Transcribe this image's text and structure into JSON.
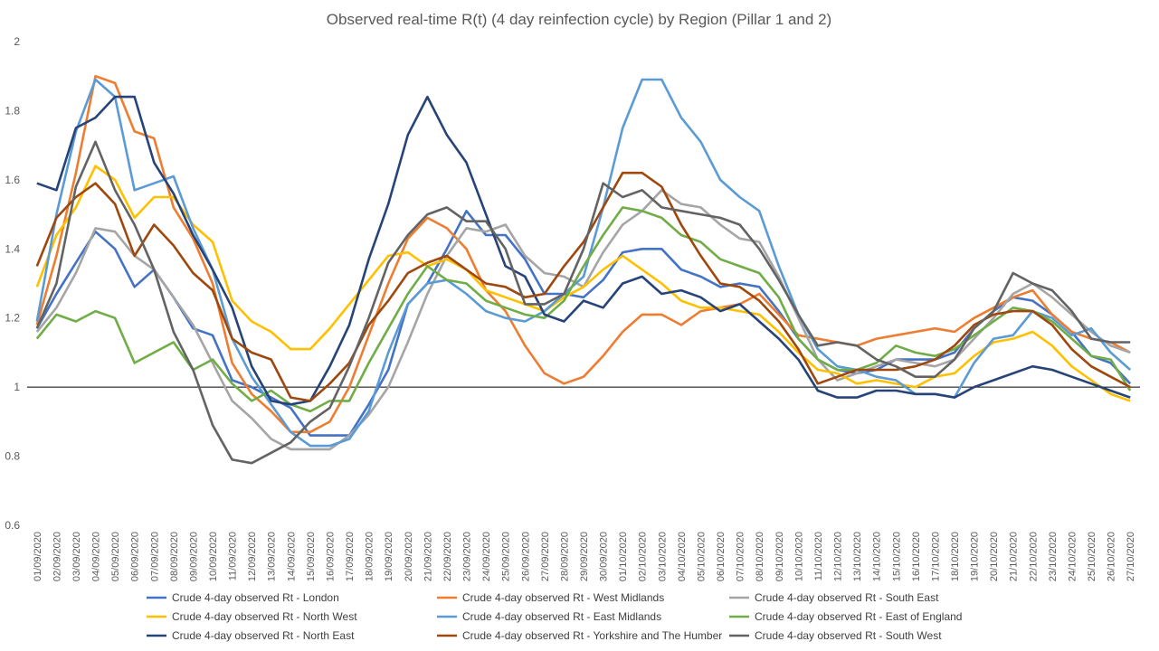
{
  "chart_data": {
    "type": "line",
    "title": "Observed real-time R(t) (4 day reinfection cycle) by Region (Pillar 1 and 2)",
    "categories": [
      "01/09/2020",
      "02/09/2020",
      "03/09/2020",
      "04/09/2020",
      "05/09/2020",
      "06/09/2020",
      "07/09/2020",
      "08/09/2020",
      "09/09/2020",
      "10/09/2020",
      "11/09/2020",
      "12/09/2020",
      "13/09/2020",
      "14/09/2020",
      "15/09/2020",
      "16/09/2020",
      "17/09/2020",
      "18/09/2020",
      "19/09/2020",
      "20/09/2020",
      "21/09/2020",
      "22/09/2020",
      "23/09/2020",
      "24/09/2020",
      "25/09/2020",
      "26/09/2020",
      "27/09/2020",
      "28/09/2020",
      "29/09/2020",
      "30/09/2020",
      "01/10/2020",
      "02/10/2020",
      "03/10/2020",
      "04/10/2020",
      "05/10/2020",
      "06/10/2020",
      "07/10/2020",
      "08/10/2020",
      "09/10/2020",
      "10/10/2020",
      "11/10/2020",
      "12/10/2020",
      "13/10/2020",
      "14/10/2020",
      "15/10/2020",
      "16/10/2020",
      "17/10/2020",
      "18/10/2020",
      "19/10/2020",
      "20/10/2020",
      "21/10/2020",
      "22/10/2020",
      "23/10/2020",
      "24/10/2020",
      "25/10/2020",
      "26/10/2020",
      "27/10/2020"
    ],
    "series": [
      {
        "name": "Crude 4-day observed Rt - London",
        "color": "#4472c4",
        "values": [
          1.17,
          1.27,
          1.36,
          1.45,
          1.4,
          1.29,
          1.34,
          1.26,
          1.17,
          1.15,
          1.02,
          1.0,
          0.97,
          0.94,
          0.86,
          0.86,
          0.86,
          0.95,
          1.05,
          1.24,
          1.3,
          1.4,
          1.51,
          1.44,
          1.44,
          1.37,
          1.27,
          1.27,
          1.26,
          1.31,
          1.39,
          1.4,
          1.4,
          1.34,
          1.32,
          1.29,
          1.3,
          1.29,
          1.22,
          1.14,
          1.08,
          1.05,
          1.04,
          1.05,
          1.08,
          1.08,
          1.08,
          1.1,
          1.17,
          1.22,
          1.26,
          1.25,
          1.21,
          1.16,
          1.09,
          1.07,
          1.01
        ]
      },
      {
        "name": "Crude 4-day observed Rt - West Midlands",
        "color": "#ed7d31",
        "values": [
          1.18,
          1.38,
          1.62,
          1.9,
          1.88,
          1.74,
          1.72,
          1.52,
          1.43,
          1.3,
          1.07,
          0.98,
          0.93,
          0.87,
          0.87,
          0.9,
          1.0,
          1.15,
          1.3,
          1.43,
          1.49,
          1.46,
          1.4,
          1.28,
          1.22,
          1.12,
          1.04,
          1.01,
          1.03,
          1.09,
          1.16,
          1.21,
          1.21,
          1.18,
          1.22,
          1.23,
          1.24,
          1.27,
          1.21,
          1.15,
          1.14,
          1.13,
          1.12,
          1.14,
          1.15,
          1.16,
          1.17,
          1.16,
          1.2,
          1.23,
          1.26,
          1.28,
          1.21,
          1.16,
          1.14,
          1.13,
          1.1
        ]
      },
      {
        "name": "Crude 4-day observed Rt - South East",
        "color": "#a5a5a5",
        "values": [
          1.16,
          1.23,
          1.33,
          1.46,
          1.45,
          1.38,
          1.34,
          1.26,
          1.18,
          1.07,
          0.96,
          0.91,
          0.85,
          0.82,
          0.82,
          0.82,
          0.86,
          0.92,
          1.0,
          1.13,
          1.27,
          1.38,
          1.46,
          1.45,
          1.47,
          1.38,
          1.33,
          1.32,
          1.29,
          1.39,
          1.47,
          1.51,
          1.57,
          1.53,
          1.52,
          1.47,
          1.43,
          1.42,
          1.32,
          1.2,
          1.08,
          1.02,
          1.04,
          1.06,
          1.08,
          1.07,
          1.06,
          1.08,
          1.14,
          1.2,
          1.27,
          1.3,
          1.26,
          1.21,
          1.16,
          1.12,
          1.1
        ]
      },
      {
        "name": "Crude 4-day observed Rt - North West",
        "color": "#ffc000",
        "values": [
          1.29,
          1.44,
          1.52,
          1.64,
          1.6,
          1.49,
          1.55,
          1.55,
          1.47,
          1.42,
          1.25,
          1.19,
          1.16,
          1.11,
          1.11,
          1.17,
          1.24,
          1.31,
          1.38,
          1.39,
          1.35,
          1.37,
          1.34,
          1.28,
          1.26,
          1.24,
          1.22,
          1.26,
          1.29,
          1.34,
          1.38,
          1.34,
          1.3,
          1.25,
          1.23,
          1.23,
          1.22,
          1.21,
          1.16,
          1.1,
          1.05,
          1.04,
          1.01,
          1.02,
          1.01,
          1.0,
          1.03,
          1.04,
          1.09,
          1.13,
          1.14,
          1.16,
          1.12,
          1.06,
          1.02,
          0.98,
          0.96
        ]
      },
      {
        "name": "Crude 4-day observed Rt - East Midlands",
        "color": "#5b9bd5",
        "values": [
          1.19,
          1.5,
          1.74,
          1.89,
          1.84,
          1.57,
          1.59,
          1.61,
          1.46,
          1.34,
          1.14,
          1.03,
          0.95,
          0.87,
          0.83,
          0.83,
          0.85,
          0.93,
          1.1,
          1.24,
          1.3,
          1.31,
          1.27,
          1.22,
          1.2,
          1.19,
          1.22,
          1.27,
          1.32,
          1.52,
          1.75,
          1.89,
          1.89,
          1.78,
          1.71,
          1.6,
          1.55,
          1.51,
          1.35,
          1.21,
          1.11,
          1.06,
          1.05,
          1.03,
          1.02,
          0.98,
          0.98,
          0.97,
          1.07,
          1.14,
          1.15,
          1.22,
          1.2,
          1.15,
          1.17,
          1.1,
          1.05
        ]
      },
      {
        "name": "Crude 4-day observed Rt - East of England",
        "color": "#70ad47",
        "values": [
          1.14,
          1.21,
          1.19,
          1.22,
          1.2,
          1.07,
          1.1,
          1.13,
          1.05,
          1.08,
          1.01,
          0.96,
          0.99,
          0.95,
          0.93,
          0.96,
          0.96,
          1.07,
          1.17,
          1.27,
          1.35,
          1.31,
          1.3,
          1.25,
          1.23,
          1.21,
          1.2,
          1.25,
          1.35,
          1.44,
          1.52,
          1.51,
          1.49,
          1.44,
          1.42,
          1.37,
          1.35,
          1.33,
          1.26,
          1.14,
          1.08,
          1.05,
          1.05,
          1.07,
          1.12,
          1.1,
          1.09,
          1.11,
          1.15,
          1.19,
          1.23,
          1.22,
          1.19,
          1.14,
          1.09,
          1.08,
          0.99
        ]
      },
      {
        "name": "Crude 4-day observed Rt - North East",
        "color": "#264478",
        "values": [
          1.59,
          1.57,
          1.75,
          1.78,
          1.84,
          1.84,
          1.65,
          1.56,
          1.44,
          1.34,
          1.23,
          1.06,
          0.96,
          0.95,
          0.96,
          1.06,
          1.18,
          1.37,
          1.53,
          1.73,
          1.84,
          1.73,
          1.65,
          1.5,
          1.35,
          1.32,
          1.21,
          1.19,
          1.25,
          1.23,
          1.3,
          1.32,
          1.27,
          1.28,
          1.26,
          1.22,
          1.24,
          1.19,
          1.14,
          1.08,
          0.99,
          0.97,
          0.97,
          0.99,
          0.99,
          0.98,
          0.98,
          0.97,
          1.0,
          1.02,
          1.04,
          1.06,
          1.05,
          1.03,
          1.01,
          0.99,
          0.97
        ]
      },
      {
        "name": "Crude 4-day observed Rt - Yorkshire and The Humber",
        "color": "#9e480e",
        "values": [
          1.35,
          1.49,
          1.55,
          1.59,
          1.53,
          1.38,
          1.47,
          1.41,
          1.33,
          1.28,
          1.14,
          1.1,
          1.08,
          0.97,
          0.96,
          1.01,
          1.07,
          1.18,
          1.25,
          1.33,
          1.36,
          1.38,
          1.34,
          1.3,
          1.29,
          1.26,
          1.27,
          1.35,
          1.42,
          1.52,
          1.62,
          1.62,
          1.58,
          1.47,
          1.38,
          1.3,
          1.29,
          1.25,
          1.19,
          1.11,
          1.01,
          1.03,
          1.05,
          1.05,
          1.05,
          1.06,
          1.08,
          1.12,
          1.18,
          1.21,
          1.22,
          1.22,
          1.18,
          1.11,
          1.06,
          1.03,
          1.0
        ]
      },
      {
        "name": "Crude 4-day observed Rt - South West",
        "color": "#636363",
        "values": [
          1.17,
          1.3,
          1.58,
          1.71,
          1.57,
          1.47,
          1.34,
          1.16,
          1.05,
          0.89,
          0.79,
          0.78,
          0.81,
          0.84,
          0.9,
          0.94,
          1.06,
          1.2,
          1.36,
          1.44,
          1.5,
          1.52,
          1.48,
          1.48,
          1.4,
          1.24,
          1.24,
          1.27,
          1.4,
          1.59,
          1.55,
          1.57,
          1.52,
          1.51,
          1.5,
          1.49,
          1.47,
          1.4,
          1.31,
          1.21,
          1.12,
          1.13,
          1.12,
          1.08,
          1.06,
          1.03,
          1.03,
          1.08,
          1.17,
          1.22,
          1.33,
          1.3,
          1.28,
          1.22,
          1.14,
          1.13,
          1.13
        ]
      }
    ],
    "ylim": [
      0.6,
      2
    ],
    "yticks": [
      0.6,
      0.8,
      1,
      1.2,
      1.4,
      1.6,
      1.8,
      2
    ],
    "grid": false,
    "x_axis_crosses": 1,
    "legend": "bottom"
  }
}
